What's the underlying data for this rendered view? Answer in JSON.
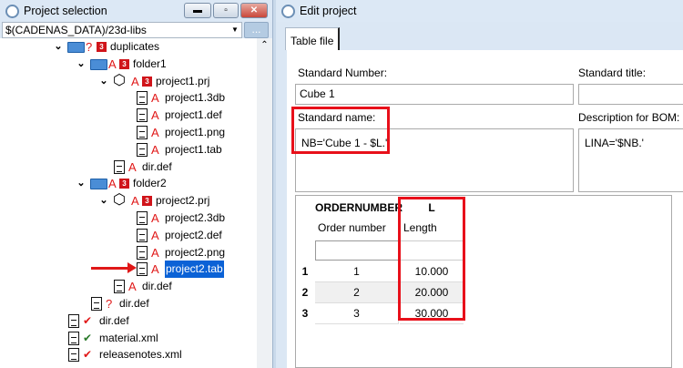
{
  "left_panel": {
    "title": "Project selection",
    "path": "$(CADENAS_DATA)/23d-libs",
    "browse_label": "...",
    "tree": [
      {
        "label": "duplicates",
        "icon": "folder-open-icon",
        "status": "?",
        "badge": "3"
      },
      {
        "label": "folder1",
        "icon": "folder-open-icon",
        "status": "A",
        "badge": "3"
      },
      {
        "label": "project1.prj",
        "icon": "cube-icon",
        "status": "A",
        "badge": "3"
      },
      {
        "label": "project1.3db",
        "icon": "file-icon",
        "status": "A"
      },
      {
        "label": "project1.def",
        "icon": "file-icon",
        "status": "A"
      },
      {
        "label": "project1.png",
        "icon": "file-icon",
        "status": "A"
      },
      {
        "label": "project1.tab",
        "icon": "file-icon",
        "status": "A"
      },
      {
        "label": "dir.def",
        "icon": "file-icon",
        "status": "A"
      },
      {
        "label": "folder2",
        "icon": "folder-open-icon",
        "status": "A",
        "badge": "3"
      },
      {
        "label": "project2.prj",
        "icon": "cube-icon",
        "status": "A",
        "badge": "3"
      },
      {
        "label": "project2.3db",
        "icon": "file-icon",
        "status": "A"
      },
      {
        "label": "project2.def",
        "icon": "file-icon",
        "status": "A"
      },
      {
        "label": "project2.png",
        "icon": "file-icon",
        "status": "A"
      },
      {
        "label": "project2.tab",
        "icon": "file-icon",
        "status": "A",
        "selected": true
      },
      {
        "label": "dir.def",
        "icon": "file-icon",
        "status": "A"
      },
      {
        "label": "dir.def",
        "icon": "file-icon",
        "status": "?"
      },
      {
        "label": "dir.def",
        "icon": "file-icon",
        "status": "check-red"
      },
      {
        "label": "material.xml",
        "icon": "file-icon",
        "status": "check-green"
      },
      {
        "label": "releasenotes.xml",
        "icon": "file-icon",
        "status": "check-red"
      }
    ]
  },
  "right_panel": {
    "title": "Edit project",
    "tab": "Table file",
    "standard_number_label": "Standard Number:",
    "standard_number": "Cube 1",
    "standard_title_label": "Standard title:",
    "standard_title": "",
    "standard_name_label": "Standard name:",
    "standard_name": "NB='Cube 1 - $L.'",
    "bom_label": "Description for BOM:",
    "bom": "LINA='$NB.'",
    "table": {
      "columns": [
        {
          "name": "ORDERNUMBER",
          "desc": "Order number"
        },
        {
          "name": "L",
          "desc": "Length"
        }
      ],
      "rows": [
        [
          "1",
          "1",
          "10.000"
        ],
        [
          "2",
          "2",
          "20.000"
        ],
        [
          "3",
          "3",
          "30.000"
        ]
      ]
    }
  },
  "colors": {
    "highlight": "#e8101a",
    "selection": "#0b62d6",
    "badge": "#d0141a"
  }
}
